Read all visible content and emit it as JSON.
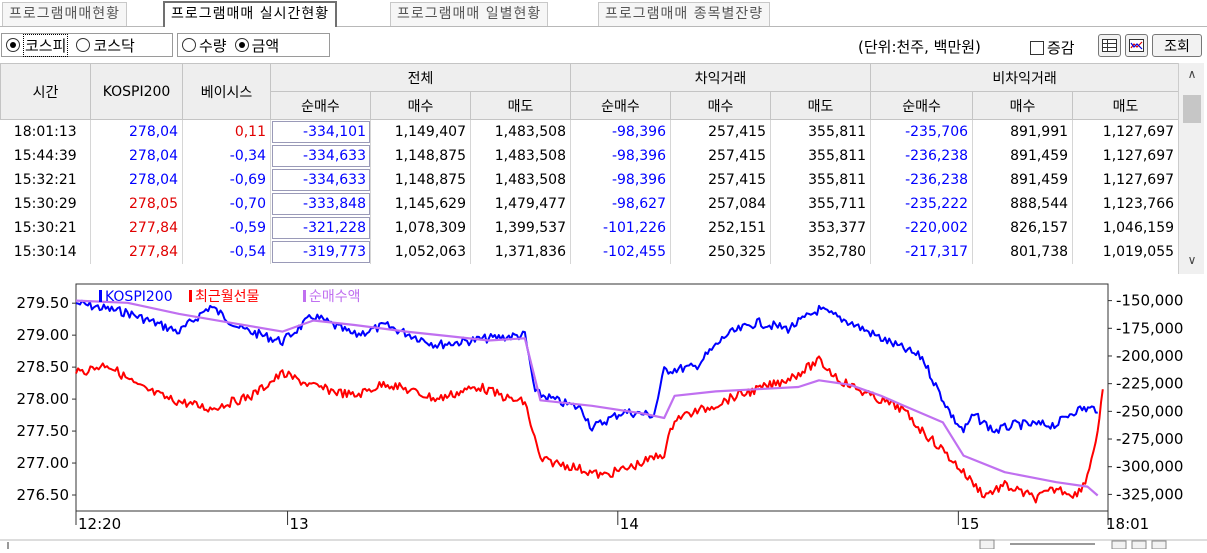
{
  "tabs": [
    {
      "label": "프로그램매매현황"
    },
    {
      "label": "프로그램매매 실시간현황"
    },
    {
      "label": "프로그램매매 일별현황"
    },
    {
      "label": "프로그램매매 종목별잔량"
    }
  ],
  "market_radios": [
    {
      "label": "코스피",
      "selected": true
    },
    {
      "label": "코스닥",
      "selected": false
    }
  ],
  "measure_radios": [
    {
      "label": "수량",
      "selected": false
    },
    {
      "label": "금액",
      "selected": true
    }
  ],
  "toolbar": {
    "unit_label": "(단위:천주, 백만원)",
    "change_label": "증감",
    "query_label": "조회"
  },
  "table": {
    "headers": {
      "time": "시간",
      "kospi200": "KOSPI200",
      "basis": "베이시스",
      "total": "전체",
      "arbitrage": "차익거래",
      "non_arbitrage": "비차익거래",
      "net": "순매수",
      "buy": "매수",
      "sell": "매도"
    },
    "rows": [
      {
        "time": "18:01:13",
        "kospi": "278,04",
        "basis": "0,11",
        "t_net": "-334,101",
        "t_buy": "1,149,407",
        "t_sell": "1,483,508",
        "a_net": "-98,396",
        "a_buy": "257,415",
        "a_sell": "355,811",
        "n_net": "-235,706",
        "n_buy": "891,991",
        "n_sell": "1,127,697"
      },
      {
        "time": "15:44:39",
        "kospi": "278,04",
        "basis": "-0,34",
        "t_net": "-334,633",
        "t_buy": "1,148,875",
        "t_sell": "1,483,508",
        "a_net": "-98,396",
        "a_buy": "257,415",
        "a_sell": "355,811",
        "n_net": "-236,238",
        "n_buy": "891,459",
        "n_sell": "1,127,697"
      },
      {
        "time": "15:32:21",
        "kospi": "278,04",
        "basis": "-0,69",
        "t_net": "-334,633",
        "t_buy": "1,148,875",
        "t_sell": "1,483,508",
        "a_net": "-98,396",
        "a_buy": "257,415",
        "a_sell": "355,811",
        "n_net": "-236,238",
        "n_buy": "891,459",
        "n_sell": "1,127,697"
      },
      {
        "time": "15:30:29",
        "kospi": "278,05",
        "basis": "-0,70",
        "t_net": "-333,848",
        "t_buy": "1,145,629",
        "t_sell": "1,479,477",
        "a_net": "-98,627",
        "a_buy": "257,084",
        "a_sell": "355,711",
        "n_net": "-235,222",
        "n_buy": "888,544",
        "n_sell": "1,123,766"
      },
      {
        "time": "15:30:21",
        "kospi": "277,84",
        "basis": "-0,59",
        "t_net": "-321,228",
        "t_buy": "1,078,309",
        "t_sell": "1,399,537",
        "a_net": "-101,226",
        "a_buy": "252,151",
        "a_sell": "353,377",
        "n_net": "-220,002",
        "n_buy": "826,157",
        "n_sell": "1,046,159"
      },
      {
        "time": "15:30:14",
        "kospi": "277,84",
        "basis": "-0,54",
        "t_net": "-319,773",
        "t_buy": "1,052,063",
        "t_sell": "1,371,836",
        "a_net": "-102,455",
        "a_buy": "250,325",
        "a_sell": "352,780",
        "n_net": "-217,317",
        "n_buy": "801,738",
        "n_sell": "1,019,055"
      }
    ]
  },
  "colors": {
    "kospi200": "#0000ff",
    "futures": "#ff0000",
    "net_buy": "#c070f0",
    "price_up": "#e00000",
    "price_down": "#0000ff"
  },
  "chart_data": {
    "type": "line",
    "legend": [
      {
        "name": "KOSPI200",
        "color": "#0000ff"
      },
      {
        "name": "최근월선물",
        "color": "#ff0000"
      },
      {
        "name": "순매수액",
        "color": "#c070f0"
      }
    ],
    "x_ticks": [
      "12:20",
      "13",
      "14",
      "15",
      "18:01"
    ],
    "x_tick_pos": [
      0,
      0.205,
      0.525,
      0.855,
      1.0
    ],
    "y_left_ticks": [
      "279.50",
      "279.00",
      "278.50",
      "278.00",
      "277.50",
      "277.00",
      "276.50"
    ],
    "y_left_range": [
      276.25,
      279.8
    ],
    "y_right_ticks": [
      "-150,000",
      "-175,000",
      "-200,000",
      "-225,000",
      "-250,000",
      "-275,000",
      "-300,000",
      "-325,000"
    ],
    "y_right_range": [
      -340000,
      -135000
    ],
    "series": [
      {
        "name": "KOSPI200",
        "axis": "left",
        "points": [
          [
            0,
            279.5
          ],
          [
            0.05,
            279.35
          ],
          [
            0.1,
            279.05
          ],
          [
            0.13,
            279.45
          ],
          [
            0.16,
            279.1
          ],
          [
            0.2,
            278.9
          ],
          [
            0.23,
            279.3
          ],
          [
            0.27,
            279.0
          ],
          [
            0.3,
            279.15
          ],
          [
            0.35,
            278.85
          ],
          [
            0.4,
            278.95
          ],
          [
            0.435,
            279.0
          ],
          [
            0.445,
            278.1
          ],
          [
            0.47,
            277.95
          ],
          [
            0.49,
            277.85
          ],
          [
            0.5,
            277.55
          ],
          [
            0.53,
            277.8
          ],
          [
            0.56,
            277.75
          ],
          [
            0.57,
            278.45
          ],
          [
            0.6,
            278.5
          ],
          [
            0.63,
            279.0
          ],
          [
            0.66,
            279.2
          ],
          [
            0.69,
            279.1
          ],
          [
            0.72,
            279.4
          ],
          [
            0.75,
            279.2
          ],
          [
            0.78,
            278.95
          ],
          [
            0.8,
            278.8
          ],
          [
            0.82,
            278.65
          ],
          [
            0.835,
            278.15
          ],
          [
            0.85,
            277.7
          ],
          [
            0.86,
            277.5
          ],
          [
            0.87,
            277.75
          ],
          [
            0.89,
            277.5
          ],
          [
            0.91,
            277.6
          ],
          [
            0.95,
            277.6
          ],
          [
            0.965,
            277.8
          ],
          [
            0.975,
            277.85
          ],
          [
            0.99,
            277.85
          ]
        ]
      },
      {
        "name": "최근월선물",
        "axis": "left",
        "points": [
          [
            0,
            278.4
          ],
          [
            0.03,
            278.55
          ],
          [
            0.06,
            278.2
          ],
          [
            0.09,
            278.0
          ],
          [
            0.13,
            277.85
          ],
          [
            0.17,
            278.05
          ],
          [
            0.2,
            278.4
          ],
          [
            0.23,
            278.2
          ],
          [
            0.27,
            278.05
          ],
          [
            0.3,
            278.25
          ],
          [
            0.35,
            278.0
          ],
          [
            0.39,
            278.2
          ],
          [
            0.42,
            278.0
          ],
          [
            0.435,
            277.95
          ],
          [
            0.45,
            277.05
          ],
          [
            0.48,
            276.95
          ],
          [
            0.51,
            276.8
          ],
          [
            0.54,
            276.95
          ],
          [
            0.57,
            277.15
          ],
          [
            0.58,
            277.7
          ],
          [
            0.61,
            277.85
          ],
          [
            0.64,
            278.05
          ],
          [
            0.68,
            278.25
          ],
          [
            0.7,
            278.4
          ],
          [
            0.72,
            278.6
          ],
          [
            0.74,
            278.3
          ],
          [
            0.77,
            278.05
          ],
          [
            0.8,
            277.85
          ],
          [
            0.82,
            277.5
          ],
          [
            0.84,
            277.2
          ],
          [
            0.86,
            276.85
          ],
          [
            0.88,
            276.5
          ],
          [
            0.9,
            276.65
          ],
          [
            0.93,
            276.45
          ],
          [
            0.95,
            276.6
          ],
          [
            0.97,
            276.5
          ],
          [
            0.98,
            276.8
          ],
          [
            0.99,
            277.5
          ],
          [
            0.995,
            278.1
          ]
        ]
      },
      {
        "name": "순매수액",
        "axis": "right",
        "points": [
          [
            0,
            -150000
          ],
          [
            0.05,
            -152000
          ],
          [
            0.1,
            -162000
          ],
          [
            0.15,
            -170000
          ],
          [
            0.2,
            -178000
          ],
          [
            0.23,
            -168000
          ],
          [
            0.27,
            -172000
          ],
          [
            0.32,
            -178000
          ],
          [
            0.36,
            -182000
          ],
          [
            0.4,
            -186000
          ],
          [
            0.435,
            -184000
          ],
          [
            0.45,
            -240000
          ],
          [
            0.5,
            -245000
          ],
          [
            0.55,
            -252000
          ],
          [
            0.57,
            -256000
          ],
          [
            0.58,
            -236000
          ],
          [
            0.62,
            -232000
          ],
          [
            0.66,
            -230000
          ],
          [
            0.7,
            -228000
          ],
          [
            0.72,
            -222000
          ],
          [
            0.75,
            -226000
          ],
          [
            0.78,
            -236000
          ],
          [
            0.8,
            -244000
          ],
          [
            0.84,
            -260000
          ],
          [
            0.86,
            -290000
          ],
          [
            0.9,
            -305000
          ],
          [
            0.95,
            -314000
          ],
          [
            0.98,
            -318000
          ],
          [
            0.99,
            -326000
          ]
        ]
      }
    ]
  }
}
